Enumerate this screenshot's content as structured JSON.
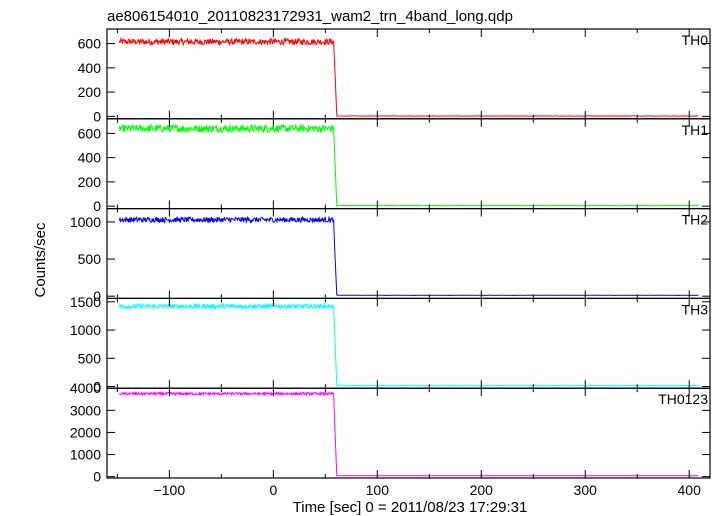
{
  "chart_data": {
    "type": "line",
    "title": "ae806154010_20110823172931_wam2_trn_4band_long.qdp",
    "xlabel": "Time [sec] 0 = 2011/08/23 17:29:31",
    "ylabel": "Counts/sec",
    "xlim": [
      -160,
      420
    ],
    "x_ticks": [
      -100,
      0,
      100,
      200,
      300,
      400
    ],
    "x_tick_labels": [
      "−100",
      "0",
      "100",
      "200",
      "300",
      "400"
    ],
    "drop_time": 58,
    "x_start": -148,
    "x_end": 410,
    "grid": false,
    "panels": [
      {
        "name": "TH0",
        "color": "#ff0000",
        "ylim": [
          -20,
          720
        ],
        "yticks": [
          0,
          200,
          400,
          600
        ],
        "ytick_labels": [
          "0",
          "200",
          "400",
          "600"
        ],
        "pre_level": 615,
        "noise": 25,
        "post_level": 3,
        "drop_points": [
          [
            58,
            615
          ],
          [
            59,
            420
          ],
          [
            61,
            3
          ]
        ]
      },
      {
        "name": "TH1",
        "color": "#00ff00",
        "ylim": [
          -20,
          720
        ],
        "yticks": [
          0,
          200,
          400,
          600
        ],
        "ytick_labels": [
          "0",
          "200",
          "400",
          "600"
        ],
        "pre_level": 640,
        "noise": 30,
        "post_level": 5,
        "drop_points": [
          [
            58,
            640
          ],
          [
            59,
            420
          ],
          [
            61,
            5
          ]
        ]
      },
      {
        "name": "TH2",
        "color": "#0000ff",
        "ylim": [
          -30,
          1180
        ],
        "yticks": [
          0,
          500,
          1000
        ],
        "ytick_labels": [
          "0",
          "500",
          "1000"
        ],
        "pre_level": 1030,
        "noise": 35,
        "post_level": 12,
        "drop_points": [
          [
            58,
            1030
          ],
          [
            59,
            640
          ],
          [
            61,
            12
          ]
        ]
      },
      {
        "name": "TH3",
        "color": "#00ffff",
        "ylim": [
          -30,
          1560
        ],
        "yticks": [
          0,
          500,
          1000,
          1500
        ],
        "ytick_labels": [
          "0",
          "500",
          "1000",
          "1500"
        ],
        "pre_level": 1420,
        "noise": 40,
        "post_level": 15,
        "drop_points": [
          [
            58,
            1420
          ],
          [
            59,
            950
          ],
          [
            61,
            15
          ]
        ]
      },
      {
        "name": "TH0123",
        "color": "#ff00ff",
        "ylim": [
          -60,
          4000
        ],
        "yticks": [
          0,
          1000,
          2000,
          3000,
          4000
        ],
        "ytick_labels": [
          "0",
          "1000",
          "2000",
          "3000",
          "4000"
        ],
        "pre_level": 3750,
        "noise": 55,
        "post_level": 40,
        "drop_points": [
          [
            58,
            3750
          ],
          [
            59,
            2400
          ],
          [
            61,
            40
          ]
        ]
      }
    ]
  }
}
